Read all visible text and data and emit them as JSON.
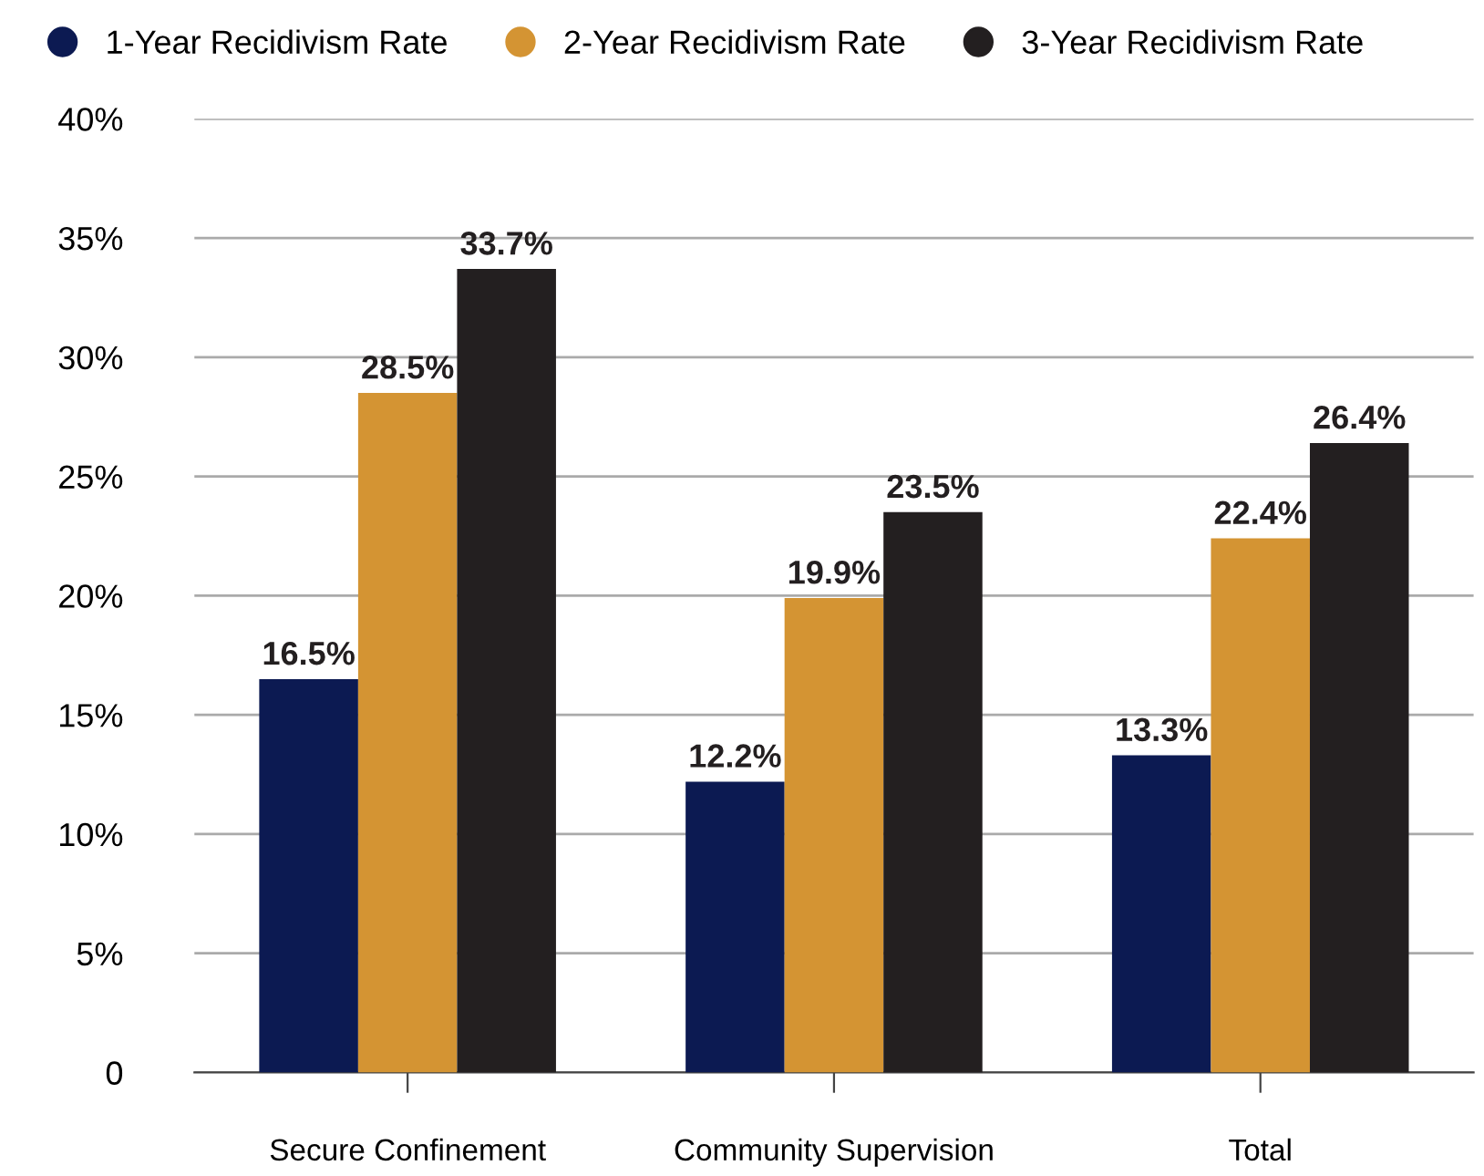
{
  "chart_data": {
    "type": "bar",
    "categories": [
      "Secure Confinement",
      "Community Supervision",
      "Total"
    ],
    "series": [
      {
        "name": "1-Year Recidivism Rate",
        "color": "#0c1a52",
        "values": [
          16.5,
          12.2,
          13.3
        ],
        "value_labels": [
          "16.5%",
          "12.2%",
          "13.3%"
        ]
      },
      {
        "name": "2-Year Recidivism Rate",
        "color": "#d49433",
        "values": [
          28.5,
          19.9,
          22.4
        ],
        "value_labels": [
          "28.5%",
          "19.9%",
          "22.4%"
        ]
      },
      {
        "name": "3-Year Recidivism Rate",
        "color": "#231f20",
        "values": [
          33.7,
          23.5,
          26.4
        ],
        "value_labels": [
          "33.7%",
          "23.5%",
          "26.4%"
        ]
      }
    ],
    "ylim": [
      0,
      40
    ],
    "yticks": [
      0,
      {
        "value": 5,
        "label": "5%"
      },
      {
        "value": 10,
        "label": "10%"
      },
      {
        "value": 15,
        "label": "15%"
      },
      {
        "value": 20,
        "label": "20%"
      },
      {
        "value": 25,
        "label": "25%"
      },
      {
        "value": 30,
        "label": "30%"
      },
      {
        "value": 35,
        "label": "35%"
      },
      {
        "value": 40,
        "label": "40%"
      }
    ],
    "grid": "y",
    "legend": "top left"
  }
}
